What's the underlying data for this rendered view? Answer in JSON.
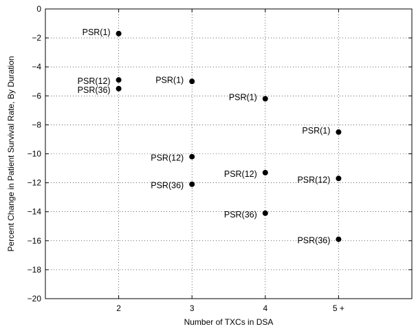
{
  "chart_data": {
    "type": "scatter",
    "title": "",
    "xlabel": "Number of TXCs in DSA",
    "ylabel": "Percent Change in Patient Survival Rate, By Duration",
    "xlim": [
      1,
      6
    ],
    "ylim": [
      -20,
      0
    ],
    "grid": true,
    "categories": [
      "2",
      "3",
      "4",
      "5 +"
    ],
    "x_ticks": [
      {
        "value": 2,
        "label": "2"
      },
      {
        "value": 3,
        "label": "3"
      },
      {
        "value": 4,
        "label": "4"
      },
      {
        "value": 5,
        "label": "5 +"
      }
    ],
    "y_ticks": [
      {
        "value": 0,
        "label": "0"
      },
      {
        "value": -2,
        "label": "−2"
      },
      {
        "value": -4,
        "label": "−4"
      },
      {
        "value": -6,
        "label": "−6"
      },
      {
        "value": -8,
        "label": "−8"
      },
      {
        "value": -10,
        "label": "−10"
      },
      {
        "value": -12,
        "label": "−12"
      },
      {
        "value": -14,
        "label": "−14"
      },
      {
        "value": -16,
        "label": "−16"
      },
      {
        "value": -18,
        "label": "−18"
      },
      {
        "value": -20,
        "label": "−20"
      }
    ],
    "points": [
      {
        "x": 2,
        "y": -1.7,
        "label": "PSR(1)"
      },
      {
        "x": 2,
        "y": -4.9,
        "label": "PSR(12)"
      },
      {
        "x": 2,
        "y": -5.5,
        "label": "PSR(36)"
      },
      {
        "x": 3,
        "y": -5.0,
        "label": "PSR(1)"
      },
      {
        "x": 3,
        "y": -10.2,
        "label": "PSR(12)"
      },
      {
        "x": 3,
        "y": -12.1,
        "label": "PSR(36)"
      },
      {
        "x": 4,
        "y": -6.2,
        "label": "PSR(1)"
      },
      {
        "x": 4,
        "y": -11.3,
        "label": "PSR(12)"
      },
      {
        "x": 4,
        "y": -14.1,
        "label": "PSR(36)"
      },
      {
        "x": 5,
        "y": -8.5,
        "label": "PSR(1)"
      },
      {
        "x": 5,
        "y": -11.7,
        "label": "PSR(12)"
      },
      {
        "x": 5,
        "y": -15.9,
        "label": "PSR(36)"
      }
    ]
  }
}
